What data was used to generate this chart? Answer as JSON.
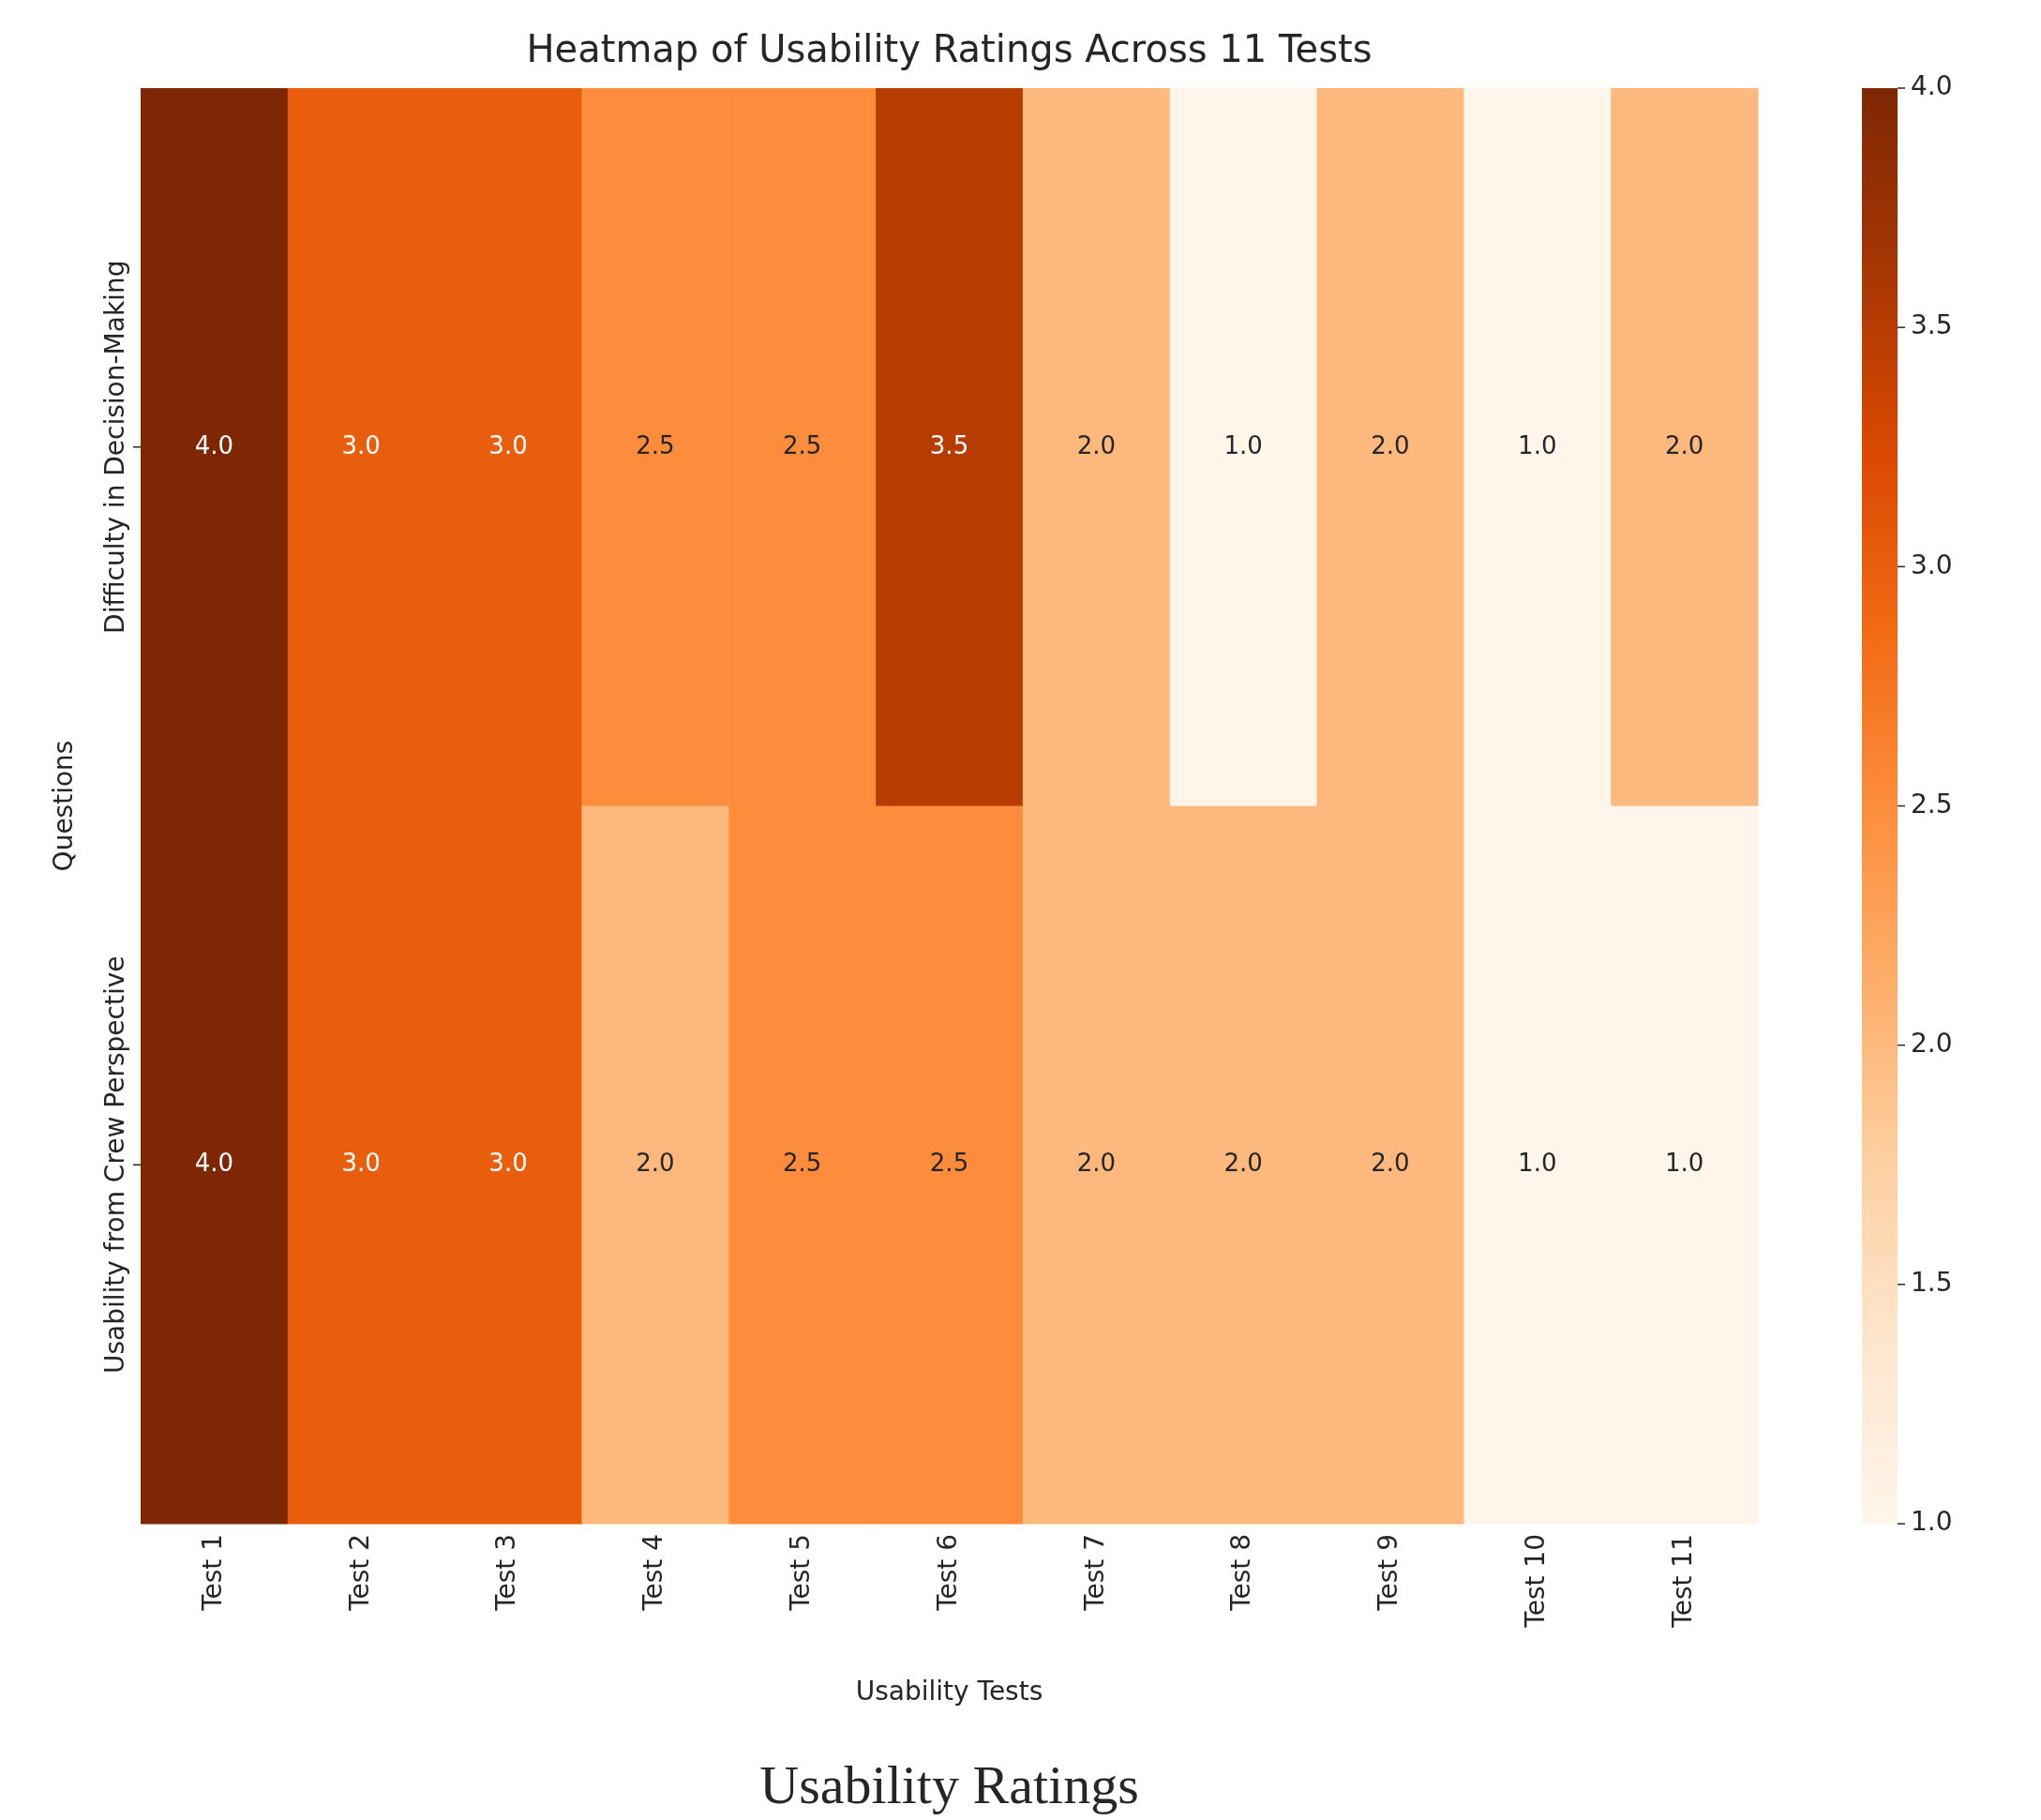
{
  "chart_data": {
    "type": "heatmap",
    "title": "Heatmap of Usability Ratings Across 11 Tests",
    "xlabel": "Usability Tests",
    "ylabel": "Questions",
    "categories": [
      "Test 1",
      "Test 2",
      "Test 3",
      "Test 4",
      "Test 5",
      "Test 6",
      "Test 7",
      "Test 8",
      "Test 9",
      "Test 10",
      "Test 11"
    ],
    "y_categories": [
      "Difficulty in Decision-Making",
      "Usability from Crew Perspective"
    ],
    "cells": [
      [
        4,
        3,
        3,
        2.5,
        2.5,
        3.5,
        2,
        1,
        2,
        1,
        2
      ],
      [
        4,
        3,
        3,
        2,
        2.5,
        2.5,
        2,
        2,
        2,
        1,
        1
      ]
    ],
    "cell_labels": [
      [
        "4.0",
        "3.0",
        "3.0",
        "2.5",
        "2.5",
        "3.5",
        "2.0",
        "1.0",
        "2.0",
        "1.0",
        "2.0"
      ],
      [
        "4.0",
        "3.0",
        "3.0",
        "2.0",
        "2.5",
        "2.5",
        "2.0",
        "2.0",
        "2.0",
        "1.0",
        "1.0"
      ]
    ],
    "clim": [
      1,
      4
    ],
    "cticks": [
      {
        "value": 1,
        "label": "1.0"
      },
      {
        "value": 1.5,
        "label": "1.5"
      },
      {
        "value": 2,
        "label": "2.0"
      },
      {
        "value": 2.5,
        "label": "2.5"
      },
      {
        "value": 3,
        "label": "3.0"
      },
      {
        "value": 3.5,
        "label": "3.5"
      },
      {
        "value": 4,
        "label": "4.0"
      }
    ],
    "annotations": [
      "Usability Ratings"
    ]
  }
}
